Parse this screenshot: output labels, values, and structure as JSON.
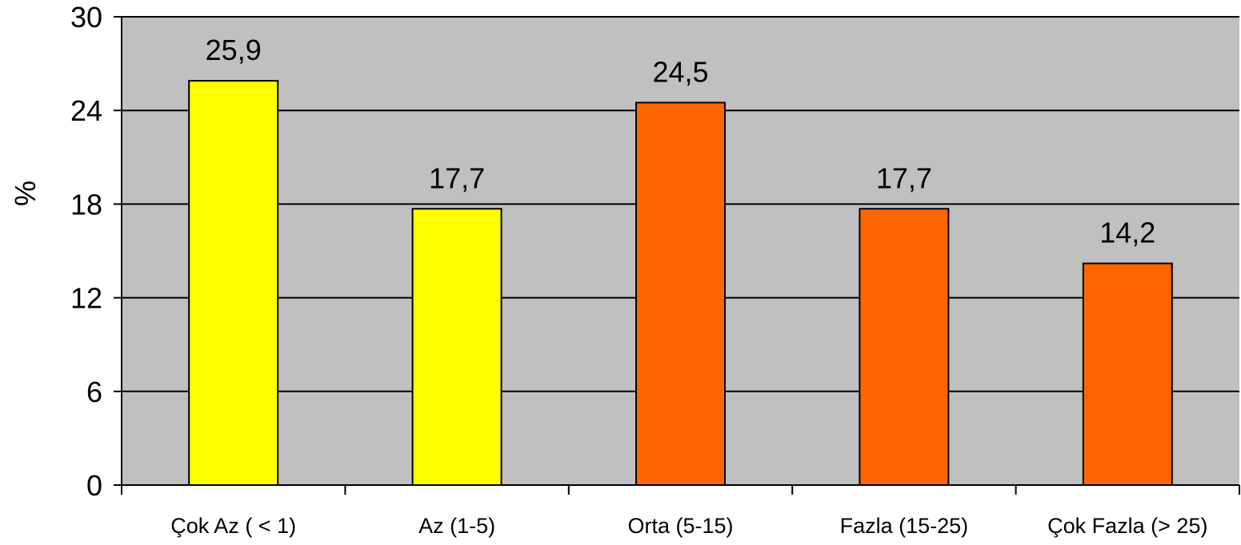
{
  "chart_data": {
    "type": "bar",
    "title": "",
    "xlabel": "",
    "ylabel": "%",
    "ylim": [
      0,
      30
    ],
    "yticks": [
      0,
      6,
      12,
      18,
      24,
      30
    ],
    "grid": true,
    "categories": [
      "Çok Az ( < 1)",
      "Az (1-5)",
      "Orta (5-15)",
      "Fazla (15-25)",
      "Çok Fazla (> 25)"
    ],
    "values": [
      25.9,
      17.7,
      24.5,
      17.7,
      14.2
    ],
    "value_labels": [
      "25,9",
      "17,7",
      "24,5",
      "17,7",
      "14,2"
    ],
    "bar_colors": [
      "#ffff00",
      "#ffff00",
      "#ff6600",
      "#ff6600",
      "#ff6600"
    ],
    "plot_background": "#c0c0c0",
    "gridline_color": "#000000"
  }
}
